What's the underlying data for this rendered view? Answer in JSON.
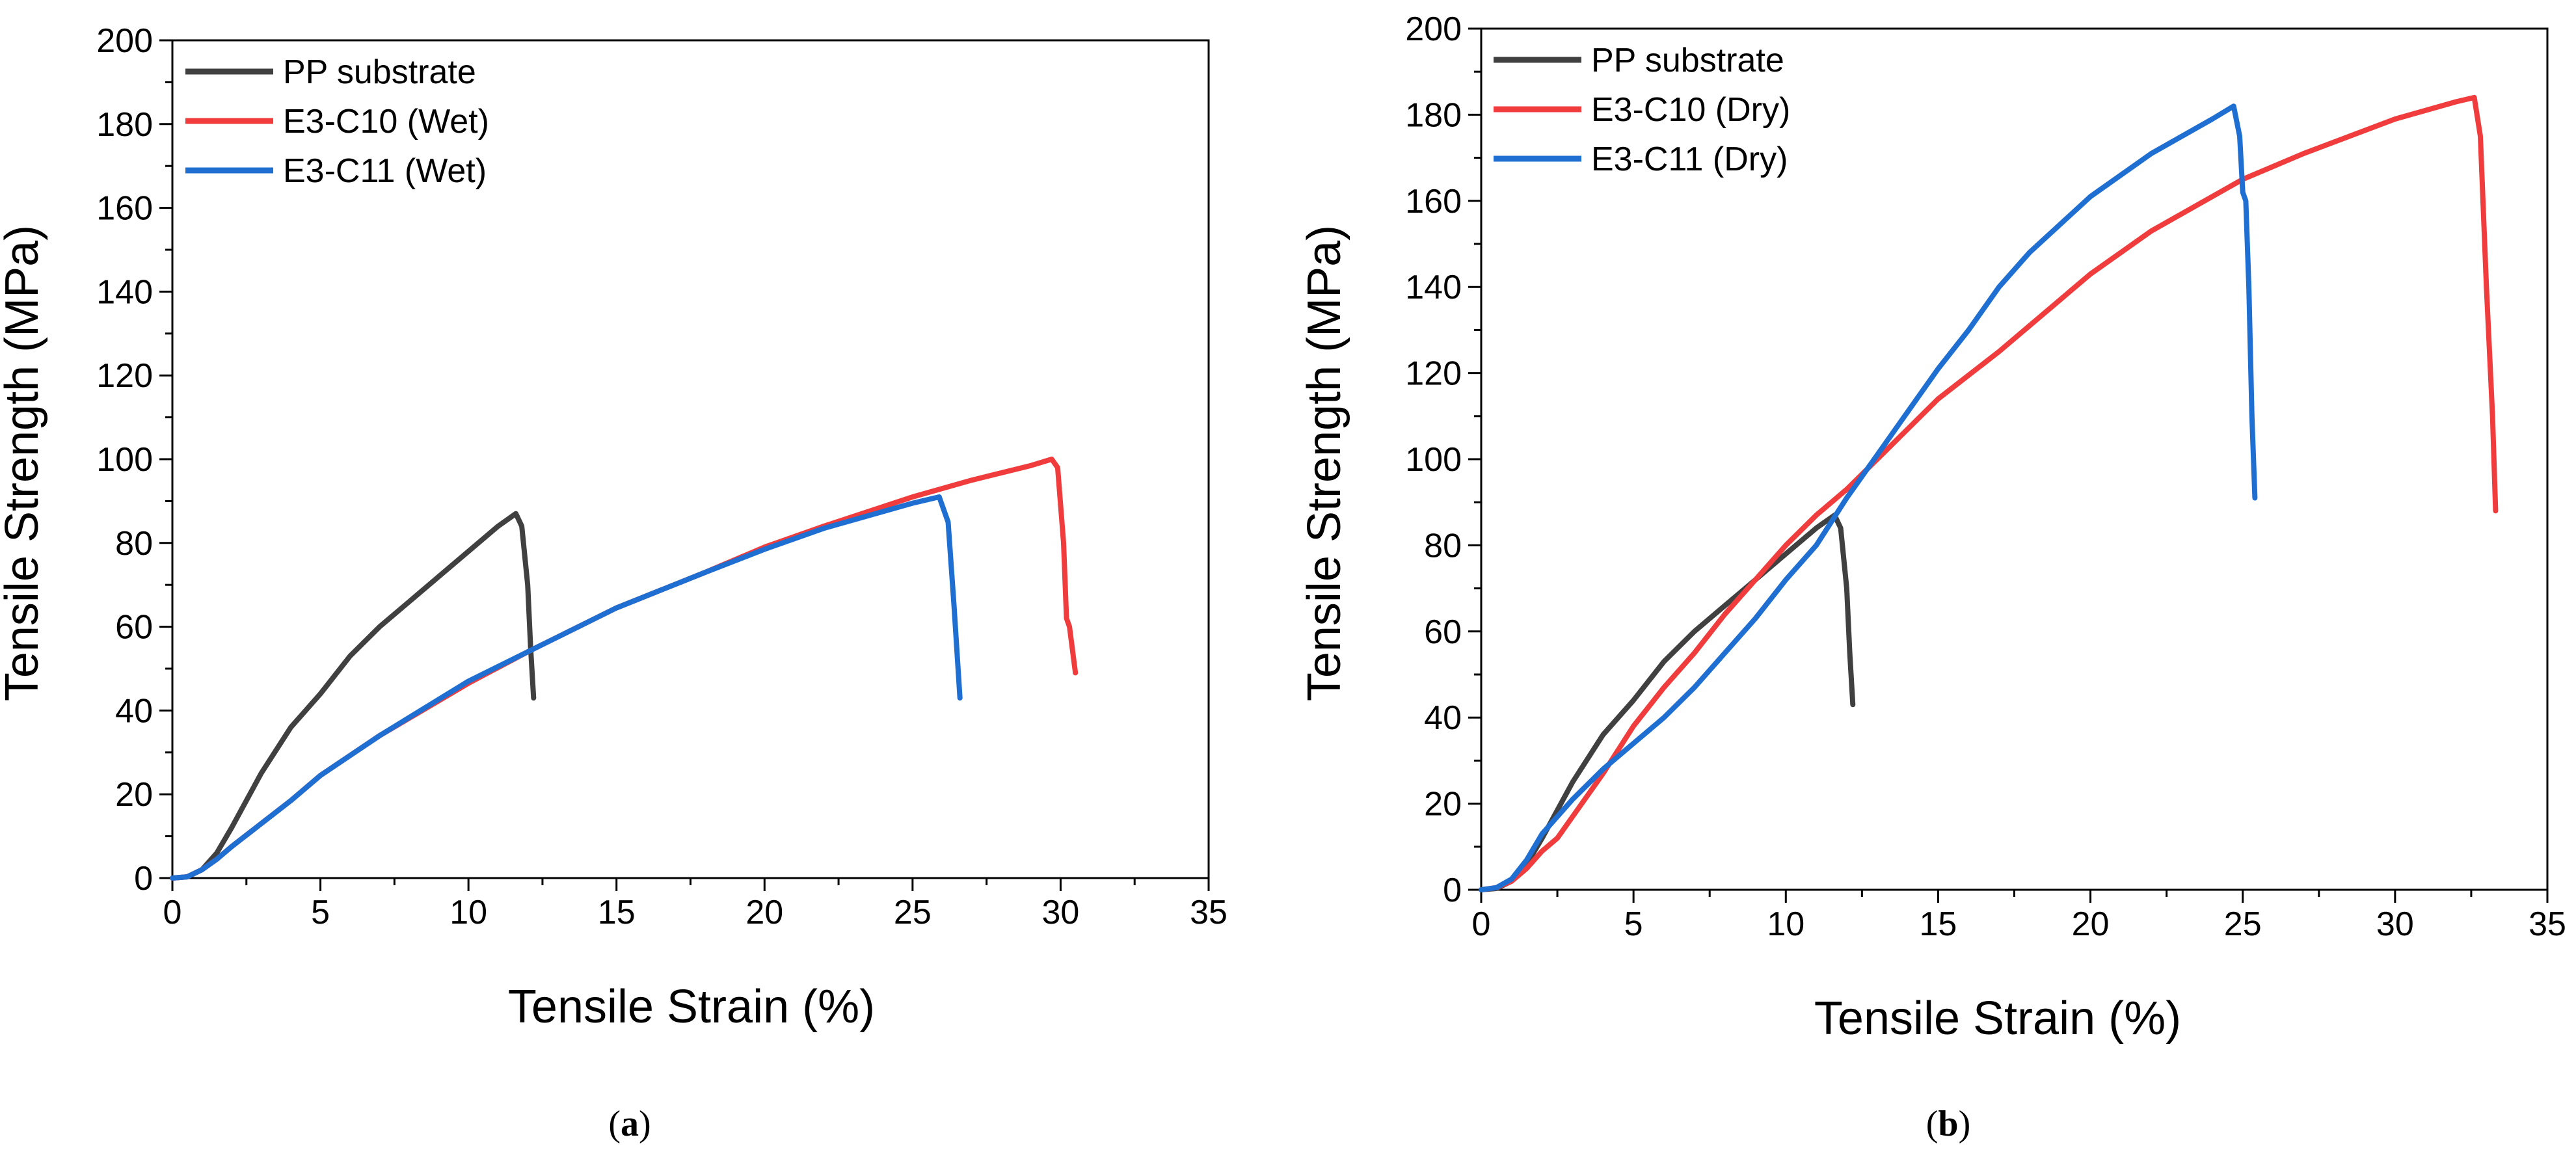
{
  "colors": {
    "pp": "#404040",
    "c10": "#f03c3c",
    "c11": "#1f6fd2",
    "axis": "#000000",
    "background": "#ffffff"
  },
  "chart_data": [
    {
      "type": "line",
      "panel_label": "(a)",
      "panel_letter": "a",
      "xlabel": "Tensile Strain (%)",
      "ylabel": "Tensile Strength (MPa)",
      "xlim": [
        0,
        35
      ],
      "ylim": [
        0,
        200
      ],
      "xticks": [
        0,
        5,
        10,
        15,
        20,
        25,
        30,
        35
      ],
      "yticks": [
        0,
        20,
        40,
        60,
        80,
        100,
        120,
        140,
        160,
        180,
        200
      ],
      "grid": false,
      "legend_position": "top-left",
      "series": [
        {
          "name": "PP substrate",
          "color_key": "pp",
          "points": [
            [
              0,
              0
            ],
            [
              0.5,
              0.3
            ],
            [
              1.0,
              2
            ],
            [
              1.5,
              6
            ],
            [
              2,
              12
            ],
            [
              3,
              25
            ],
            [
              4,
              36
            ],
            [
              5,
              44
            ],
            [
              6,
              53
            ],
            [
              7,
              60
            ],
            [
              8,
              66
            ],
            [
              9,
              72
            ],
            [
              10,
              78
            ],
            [
              11,
              84
            ],
            [
              11.6,
              87
            ],
            [
              11.8,
              84
            ],
            [
              12.0,
              70
            ],
            [
              12.1,
              55
            ],
            [
              12.2,
              43
            ]
          ]
        },
        {
          "name": "E3-C10 (Wet)",
          "color_key": "c10",
          "points": [
            [
              0,
              0
            ],
            [
              0.5,
              0.3
            ],
            [
              1.0,
              2
            ],
            [
              1.5,
              4.5
            ],
            [
              2,
              7.5
            ],
            [
              3,
              13
            ],
            [
              4,
              18.5
            ],
            [
              5,
              24.5
            ],
            [
              7,
              34
            ],
            [
              10,
              46.5
            ],
            [
              12,
              54
            ],
            [
              15,
              64.5
            ],
            [
              18,
              73
            ],
            [
              20,
              79
            ],
            [
              22,
              84
            ],
            [
              25,
              91
            ],
            [
              27,
              95
            ],
            [
              29,
              98.5
            ],
            [
              29.7,
              100
            ],
            [
              29.9,
              98
            ],
            [
              30.1,
              80
            ],
            [
              30.2,
              62
            ],
            [
              30.3,
              60
            ],
            [
              30.5,
              49
            ]
          ]
        },
        {
          "name": "E3-C11 (Wet)",
          "color_key": "c11",
          "points": [
            [
              0,
              0
            ],
            [
              0.5,
              0.3
            ],
            [
              1.0,
              2
            ],
            [
              1.5,
              4.5
            ],
            [
              2,
              7.5
            ],
            [
              3,
              13
            ],
            [
              4,
              18.5
            ],
            [
              5,
              24.5
            ],
            [
              7,
              34
            ],
            [
              10,
              47
            ],
            [
              12,
              54
            ],
            [
              15,
              64.5
            ],
            [
              18,
              73
            ],
            [
              20,
              78.5
            ],
            [
              22,
              83.5
            ],
            [
              24,
              87.5
            ],
            [
              25,
              89.5
            ],
            [
              25.9,
              91
            ],
            [
              26.2,
              85
            ],
            [
              26.4,
              65
            ],
            [
              26.6,
              43
            ]
          ]
        }
      ]
    },
    {
      "type": "line",
      "panel_label": "(b)",
      "panel_letter": "b",
      "xlabel": "Tensile Strain (%)",
      "ylabel": "Tensile Strength (MPa)",
      "xlim": [
        0,
        35
      ],
      "ylim": [
        0,
        200
      ],
      "xticks": [
        0,
        5,
        10,
        15,
        20,
        25,
        30,
        35
      ],
      "yticks": [
        0,
        20,
        40,
        60,
        80,
        100,
        120,
        140,
        160,
        180,
        200
      ],
      "grid": false,
      "legend_position": "top-left",
      "series": [
        {
          "name": "PP substrate",
          "color_key": "pp",
          "points": [
            [
              0,
              0
            ],
            [
              0.5,
              0.3
            ],
            [
              1.0,
              2
            ],
            [
              1.5,
              6
            ],
            [
              2,
              12
            ],
            [
              3,
              25
            ],
            [
              4,
              36
            ],
            [
              5,
              44
            ],
            [
              6,
              53
            ],
            [
              7,
              60
            ],
            [
              8,
              66
            ],
            [
              9,
              72
            ],
            [
              10,
              78
            ],
            [
              11,
              84
            ],
            [
              11.6,
              87
            ],
            [
              11.8,
              84
            ],
            [
              12.0,
              70
            ],
            [
              12.1,
              55
            ],
            [
              12.2,
              43
            ]
          ]
        },
        {
          "name": "E3-C10 (Dry)",
          "color_key": "c10",
          "points": [
            [
              0,
              0
            ],
            [
              0.5,
              0.5
            ],
            [
              1.0,
              2
            ],
            [
              1.5,
              5
            ],
            [
              2,
              9
            ],
            [
              2.5,
              12
            ],
            [
              3,
              17
            ],
            [
              4,
              27
            ],
            [
              5,
              38
            ],
            [
              6,
              47
            ],
            [
              7,
              55
            ],
            [
              8,
              64
            ],
            [
              9,
              72
            ],
            [
              10,
              80
            ],
            [
              11,
              87
            ],
            [
              12,
              93
            ],
            [
              13,
              100
            ],
            [
              14,
              107
            ],
            [
              15,
              114
            ],
            [
              17,
              125
            ],
            [
              20,
              143
            ],
            [
              22,
              153
            ],
            [
              25,
              165
            ],
            [
              27,
              171
            ],
            [
              30,
              179
            ],
            [
              32,
              183
            ],
            [
              32.6,
              184
            ],
            [
              32.8,
              175
            ],
            [
              33.0,
              140
            ],
            [
              33.2,
              110
            ],
            [
              33.3,
              88
            ]
          ]
        },
        {
          "name": "E3-C11 (Dry)",
          "color_key": "c11",
          "points": [
            [
              0,
              0
            ],
            [
              0.5,
              0.5
            ],
            [
              1.0,
              2.5
            ],
            [
              1.5,
              7
            ],
            [
              2,
              13
            ],
            [
              3,
              21
            ],
            [
              4,
              28
            ],
            [
              5,
              34
            ],
            [
              6,
              40
            ],
            [
              7,
              47
            ],
            [
              8,
              55
            ],
            [
              9,
              63
            ],
            [
              10,
              72
            ],
            [
              11,
              80
            ],
            [
              12,
              91
            ],
            [
              13,
              101
            ],
            [
              14,
              111
            ],
            [
              15,
              121
            ],
            [
              16,
              130
            ],
            [
              17,
              140
            ],
            [
              18,
              148
            ],
            [
              20,
              161
            ],
            [
              22,
              171
            ],
            [
              24,
              179
            ],
            [
              24.7,
              182
            ],
            [
              24.9,
              175
            ],
            [
              25.0,
              162
            ],
            [
              25.1,
              160
            ],
            [
              25.2,
              140
            ],
            [
              25.3,
              110
            ],
            [
              25.4,
              91
            ]
          ]
        }
      ]
    }
  ]
}
